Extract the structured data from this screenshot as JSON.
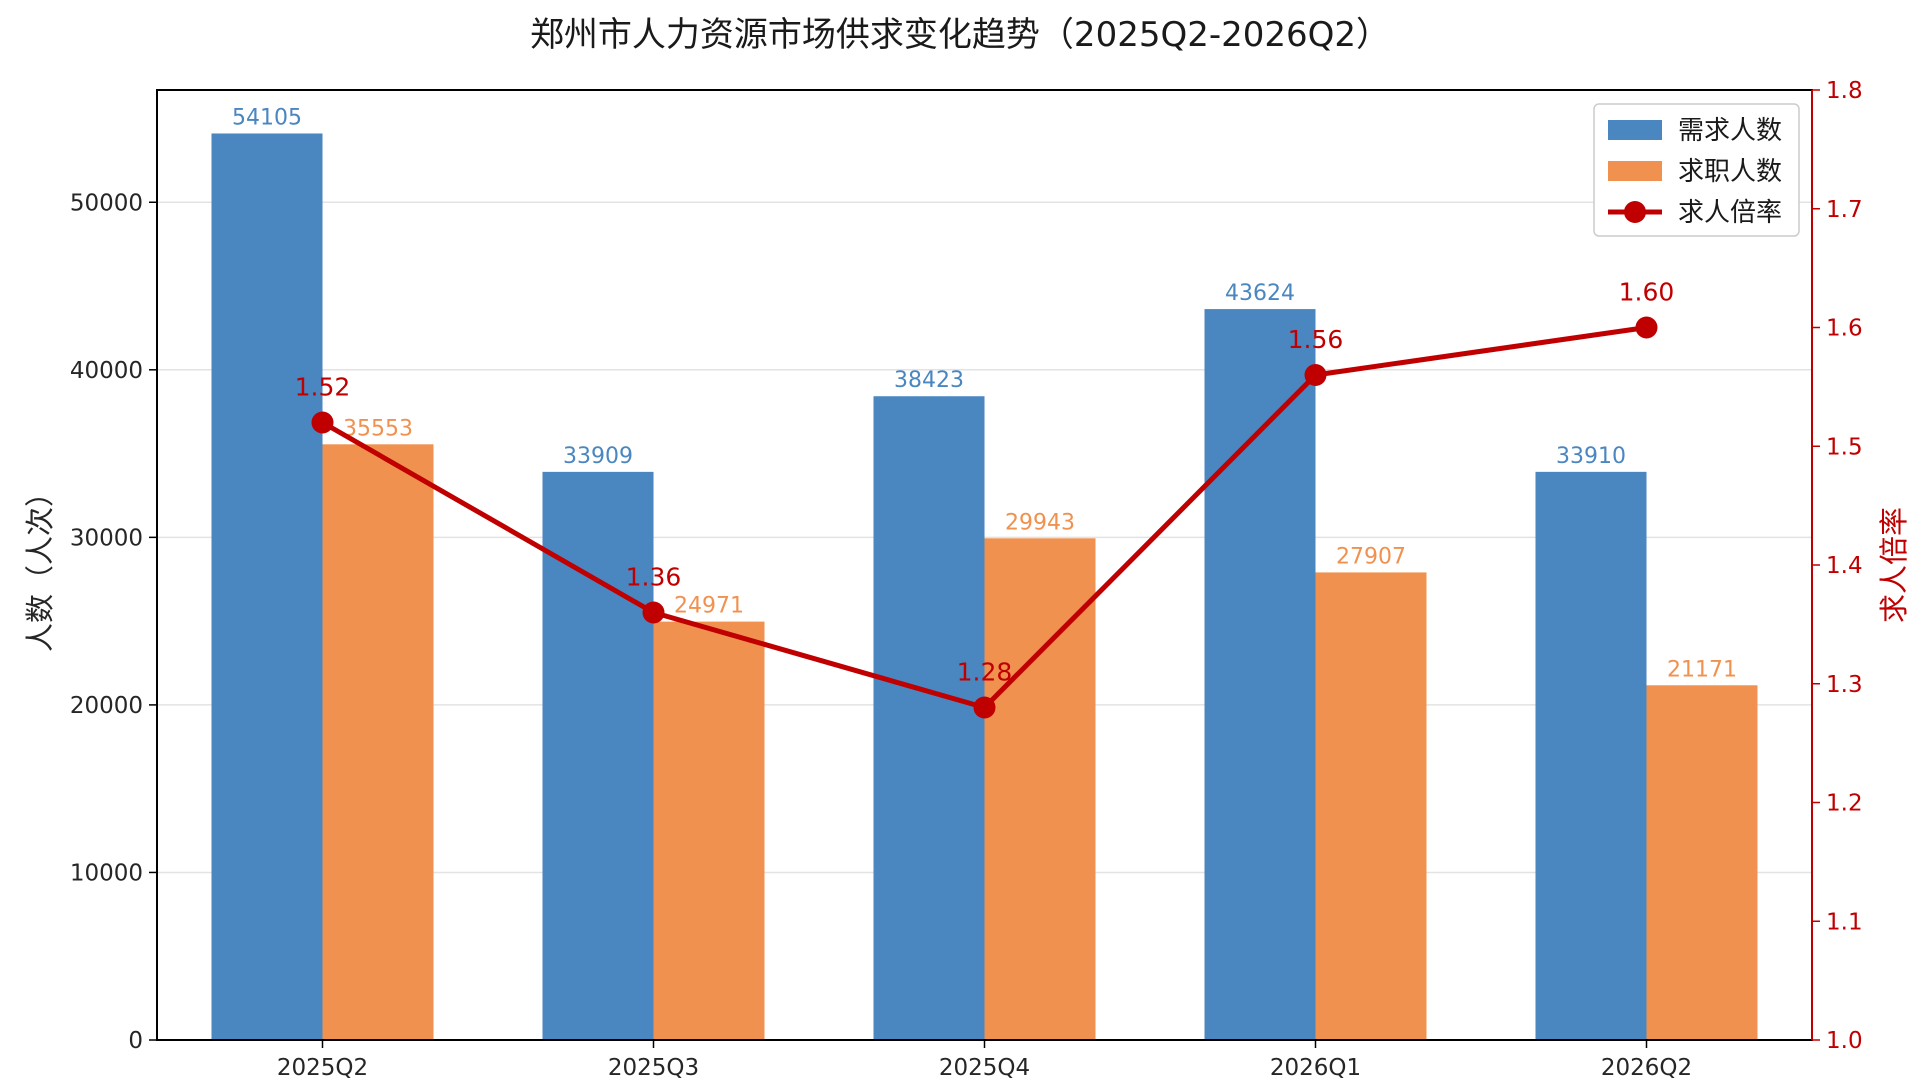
{
  "chart_data": {
    "type": "bar",
    "title": "郑州市人力资源市场供求变化趋势（2025Q2-2026Q2）",
    "categories": [
      "2025Q2",
      "2025Q3",
      "2025Q4",
      "2026Q1",
      "2026Q2"
    ],
    "series": [
      {
        "name": "需求人数",
        "type": "bar",
        "axis": "left",
        "color": "#4a86c0",
        "values": [
          54105,
          33909,
          38423,
          43624,
          33910
        ]
      },
      {
        "name": "求职人数",
        "type": "bar",
        "axis": "left",
        "color": "#f0914f",
        "values": [
          35553,
          24971,
          29943,
          27907,
          21171
        ]
      },
      {
        "name": "求人倍率",
        "type": "line",
        "axis": "right",
        "color": "#c00000",
        "values": [
          1.52,
          1.36,
          1.28,
          1.56,
          1.6
        ],
        "labels": [
          "1.52",
          "1.36",
          "1.28",
          "1.56",
          "1.60"
        ]
      }
    ],
    "ylabel": "人数（人次）",
    "ylim": [
      0,
      56700
    ],
    "yticks": [
      0,
      10000,
      20000,
      30000,
      40000,
      50000
    ],
    "y2label": "求人倍率",
    "y2lim": [
      1.0,
      1.8
    ],
    "y2ticks": [
      "1.0",
      "1.1",
      "1.2",
      "1.3",
      "1.4",
      "1.5",
      "1.6",
      "1.7",
      "1.8"
    ],
    "grid": true,
    "legend_position": "top-right",
    "axis_colors": {
      "left": "#262626",
      "right": "#c00000"
    }
  }
}
